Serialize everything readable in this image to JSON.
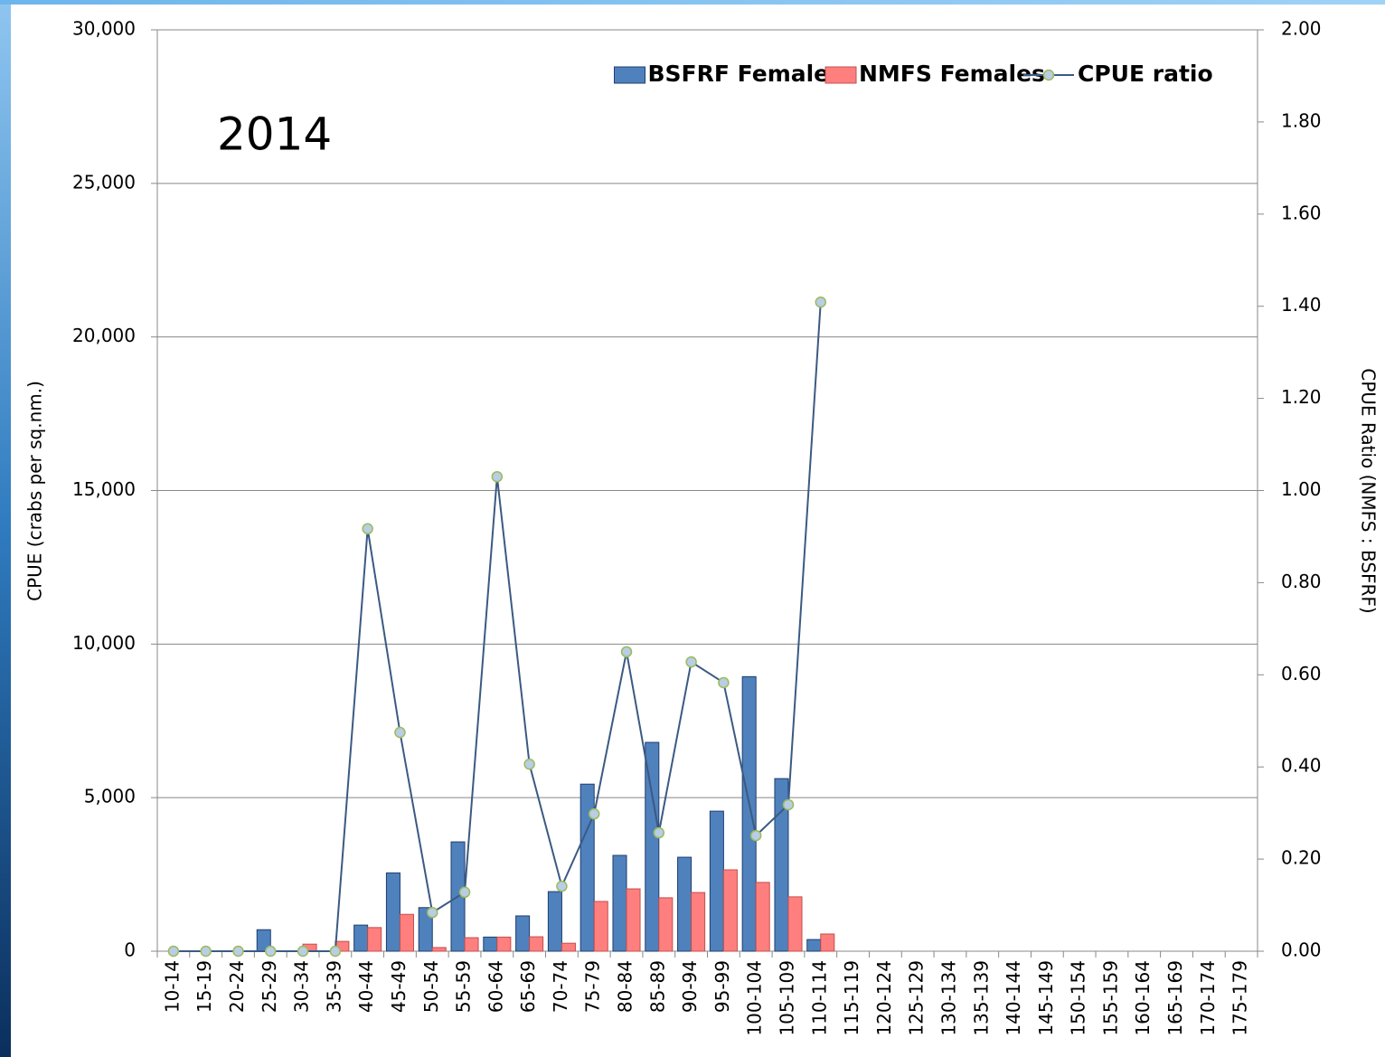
{
  "chart_data": {
    "type": "bar",
    "annotation": "2014",
    "ylabel": "CPUE (crabs per sq.nm.)",
    "y2label": "CPUE Ratio (NMFS : BSFRF)",
    "legend": "upper right",
    "grid": true,
    "categories": [
      "10-14",
      "15-19",
      "20-24",
      "25-29",
      "30-34",
      "35-39",
      "40-44",
      "45-49",
      "50-54",
      "55-59",
      "60-64",
      "65-69",
      "70-74",
      "75-79",
      "80-84",
      "85-89",
      "90-94",
      "95-99",
      "100-104",
      "105-109",
      "110-114",
      "115-119",
      "120-124",
      "125-129",
      "130-134",
      "135-139",
      "140-144",
      "145-149",
      "150-154",
      "155-159",
      "160-164",
      "165-169",
      "170-174",
      "175-179"
    ],
    "series": [
      {
        "name": "BSFRF Females",
        "color": "#4f81bd",
        "type": "bar",
        "values": [
          0,
          0,
          0,
          700,
          0,
          0,
          850,
          2550,
          1420,
          3560,
          460,
          1150,
          1940,
          5440,
          3120,
          6800,
          3060,
          4560,
          8940,
          5620,
          380,
          0,
          0,
          0,
          0,
          0,
          0,
          0,
          0,
          0,
          0,
          0,
          0,
          0
        ]
      },
      {
        "name": "NMFS Females",
        "color": "#ff7f7f",
        "type": "bar",
        "values": [
          0,
          0,
          0,
          0,
          230,
          320,
          770,
          1200,
          120,
          440,
          460,
          470,
          260,
          1620,
          2030,
          1740,
          1910,
          2650,
          2240,
          1770,
          560,
          0,
          0,
          0,
          0,
          0,
          0,
          0,
          0,
          0,
          0,
          0,
          0,
          0
        ]
      },
      {
        "name": "CPUE ratio",
        "color": "#3b5a82",
        "type": "line",
        "axis": "y2",
        "values": [
          0,
          0,
          0,
          0,
          0,
          0,
          0.917,
          0.475,
          0.084,
          0.128,
          1.03,
          0.406,
          0.141,
          0.298,
          0.65,
          0.257,
          0.628,
          0.583,
          0.251,
          0.318,
          1.409,
          null,
          null,
          null,
          null,
          null,
          null,
          null,
          null,
          null,
          null,
          null,
          null,
          null
        ]
      }
    ],
    "ylim": [
      0,
      30000
    ],
    "yticks": [
      0,
      {
        "value": 5000,
        "label": "5,000"
      },
      {
        "value": 10000,
        "label": "10,000"
      },
      {
        "value": 15000,
        "label": "15,000"
      },
      {
        "value": 20000,
        "label": "20,000"
      },
      {
        "value": 25000,
        "label": "25,000"
      },
      {
        "value": 30000,
        "label": "30,000"
      }
    ],
    "y2lim": [
      0,
      2
    ],
    "y2ticks": [
      {
        "value": 0,
        "label": "0.00"
      },
      {
        "value": 0.2,
        "label": "0.20"
      },
      {
        "value": 0.4,
        "label": "0.40"
      },
      {
        "value": 0.6,
        "label": "0.60"
      },
      {
        "value": 0.8,
        "label": "0.80"
      },
      {
        "value": 1,
        "label": "1.00"
      },
      {
        "value": 1.2,
        "label": "1.20"
      },
      {
        "value": 1.4,
        "label": "1.40"
      },
      {
        "value": 1.6,
        "label": "1.60"
      },
      {
        "value": 1.8,
        "label": "1.80"
      },
      {
        "value": 2,
        "label": "2.00"
      }
    ]
  }
}
